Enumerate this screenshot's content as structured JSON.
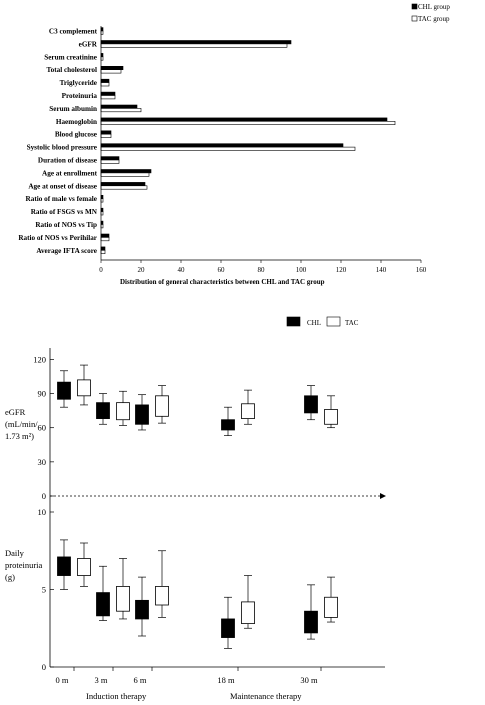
{
  "chart_data": [
    {
      "type": "bar",
      "orientation": "horizontal",
      "xlabel": "Distribution of general characteristics between CHL and TAC group",
      "xlim": [
        0,
        160
      ],
      "xticks": [
        "0",
        "20",
        "40",
        "60",
        "80",
        "100",
        "120",
        "140",
        "160"
      ],
      "legend": {
        "position": "top-right"
      },
      "categories": [
        "C3 complement",
        "eGFR",
        "Serum creatinine",
        "Total cholesterol",
        "Triglyceride",
        "Proteinuria",
        "Serum albumin",
        "Haemoglobin",
        "Blood glucose",
        "Systolic blood pressure",
        "Duration of disease",
        "Age at enrollment",
        "Age at onset of disease",
        "Ratio of male vs female",
        "Ratio of FSGS vs MN",
        "Ratio of NOS vs Tip",
        "Ratio of NOS vs Perihilar",
        "Average IFTA score"
      ],
      "series": [
        {
          "name": "CHL group",
          "color": "#000000",
          "values": [
            1,
            95,
            1,
            11,
            4,
            7,
            18,
            143,
            5,
            121,
            9,
            25,
            22,
            1,
            1,
            1,
            4,
            2
          ]
        },
        {
          "name": "TAC group",
          "color": "#ffffff",
          "values": [
            1,
            93,
            1,
            10,
            4,
            7,
            20,
            147,
            5,
            127,
            9,
            24,
            23,
            1,
            1,
            1,
            4,
            2
          ]
        }
      ]
    },
    {
      "type": "box",
      "legend": {
        "position": "top"
      },
      "x_categories": [
        "0 m",
        "3 m",
        "6 m",
        "18 m",
        "30 m"
      ],
      "x_groups": [
        "Induction therapy",
        "Maintenance therapy"
      ],
      "series_names": [
        "CHL",
        "TAC"
      ],
      "panels": [
        {
          "ylabel_lines": [
            "eGFR",
            "(mL/min/",
            "1.73 m²)"
          ],
          "ylim": [
            0,
            130
          ],
          "yticks": [
            "120",
            "90",
            "60",
            "30",
            "0"
          ],
          "boxes": {
            "CHL": [
              {
                "low": 78,
                "q1": 85,
                "q3": 100,
                "high": 110
              },
              {
                "low": 63,
                "q1": 68,
                "q3": 82,
                "high": 90
              },
              {
                "low": 58,
                "q1": 63,
                "q3": 80,
                "high": 89
              },
              {
                "low": 53,
                "q1": 58,
                "q3": 67,
                "high": 78
              },
              {
                "low": 67,
                "q1": 73,
                "q3": 88,
                "high": 97
              }
            ],
            "TAC": [
              {
                "low": 80,
                "q1": 88,
                "q3": 102,
                "high": 115
              },
              {
                "low": 62,
                "q1": 67,
                "q3": 82,
                "high": 92
              },
              {
                "low": 64,
                "q1": 70,
                "q3": 88,
                "high": 97
              },
              {
                "low": 63,
                "q1": 68,
                "q3": 81,
                "high": 93
              },
              {
                "low": 60,
                "q1": 63,
                "q3": 76,
                "high": 88
              }
            ]
          }
        },
        {
          "ylabel_lines": [
            "Daily",
            "proteinuria",
            "(g)"
          ],
          "ylim": [
            0,
            10
          ],
          "yticks": [
            "10",
            "5",
            "0"
          ],
          "boxes": {
            "CHL": [
              {
                "low": 5.0,
                "q1": 5.9,
                "q3": 7.1,
                "high": 8.2
              },
              {
                "low": 3.0,
                "q1": 3.3,
                "q3": 4.8,
                "high": 6.5
              },
              {
                "low": 2.0,
                "q1": 3.1,
                "q3": 4.3,
                "high": 5.8
              },
              {
                "low": 1.2,
                "q1": 1.9,
                "q3": 3.1,
                "high": 4.5
              },
              {
                "low": 1.8,
                "q1": 2.2,
                "q3": 3.6,
                "high": 5.3
              }
            ],
            "TAC": [
              {
                "low": 5.2,
                "q1": 5.9,
                "q3": 7.0,
                "high": 8.0
              },
              {
                "low": 3.1,
                "q1": 3.6,
                "q3": 5.2,
                "high": 7.0
              },
              {
                "low": 3.2,
                "q1": 4.0,
                "q3": 5.2,
                "high": 7.5
              },
              {
                "low": 2.5,
                "q1": 2.8,
                "q3": 4.2,
                "high": 5.9
              },
              {
                "low": 2.9,
                "q1": 3.2,
                "q3": 4.5,
                "high": 5.8
              }
            ]
          }
        }
      ]
    }
  ]
}
